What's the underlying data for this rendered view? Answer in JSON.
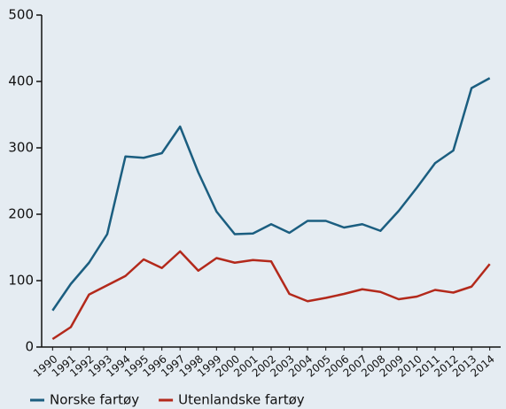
{
  "chart_data": {
    "type": "line",
    "x": [
      1990,
      1991,
      1992,
      1993,
      1994,
      1995,
      1996,
      1997,
      1998,
      1999,
      2000,
      2001,
      2002,
      2003,
      2004,
      2005,
      2006,
      2007,
      2008,
      2009,
      2010,
      2011,
      2012,
      2013,
      2014
    ],
    "xlim": [
      1989.4,
      2014.6
    ],
    "ylim": [
      0,
      500
    ],
    "yticks": [
      0,
      100,
      200,
      300,
      400,
      500
    ],
    "legend": "bottom",
    "series": [
      {
        "name": "Norske fartøy",
        "color": "#1b5e80",
        "values": [
          55,
          95,
          127,
          170,
          287,
          285,
          292,
          332,
          263,
          204,
          170,
          171,
          185,
          172,
          190,
          190,
          180,
          185,
          175,
          205,
          240,
          277,
          296,
          390,
          405
        ]
      },
      {
        "name": "Utenlandske fartøy",
        "color": "#b3291b",
        "values": [
          12,
          30,
          79,
          93,
          107,
          132,
          119,
          144,
          115,
          134,
          127,
          131,
          129,
          80,
          69,
          74,
          80,
          87,
          83,
          72,
          76,
          86,
          82,
          91,
          125
        ]
      }
    ]
  }
}
